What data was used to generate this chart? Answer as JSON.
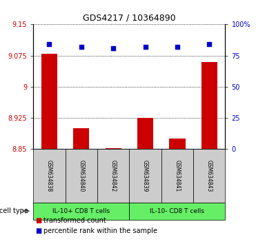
{
  "title": "GDS4217 / 10364890",
  "samples": [
    "GSM634838",
    "GSM634840",
    "GSM634842",
    "GSM634839",
    "GSM634841",
    "GSM634843"
  ],
  "transformed_count": [
    9.08,
    8.9,
    8.852,
    8.925,
    8.875,
    9.06
  ],
  "percentile_rank": [
    84,
    82,
    81,
    82,
    82,
    84
  ],
  "ylim_left": [
    8.85,
    9.15
  ],
  "ylim_right": [
    0,
    100
  ],
  "yticks_left": [
    8.85,
    8.925,
    9.0,
    9.075,
    9.15
  ],
  "yticks_right": [
    0,
    25,
    50,
    75,
    100
  ],
  "ytick_labels_left": [
    "8.85",
    "8.925",
    "9",
    "9.075",
    "9.15"
  ],
  "ytick_labels_right": [
    "0",
    "25",
    "50",
    "75",
    "100%"
  ],
  "bar_color": "#cc0000",
  "dot_color": "#0000cc",
  "group1_label": "IL-10+ CD8 T cells",
  "group2_label": "IL-10- CD8 T cells",
  "group1_indices": [
    0,
    1,
    2
  ],
  "group2_indices": [
    3,
    4,
    5
  ],
  "group_bg_color": "#66ee66",
  "sample_bg_color": "#cccccc",
  "cell_type_label": "cell type",
  "legend_bar_label": "transformed count",
  "legend_dot_label": "percentile rank within the sample",
  "bar_width": 0.5,
  "gridline_color": "#000000"
}
